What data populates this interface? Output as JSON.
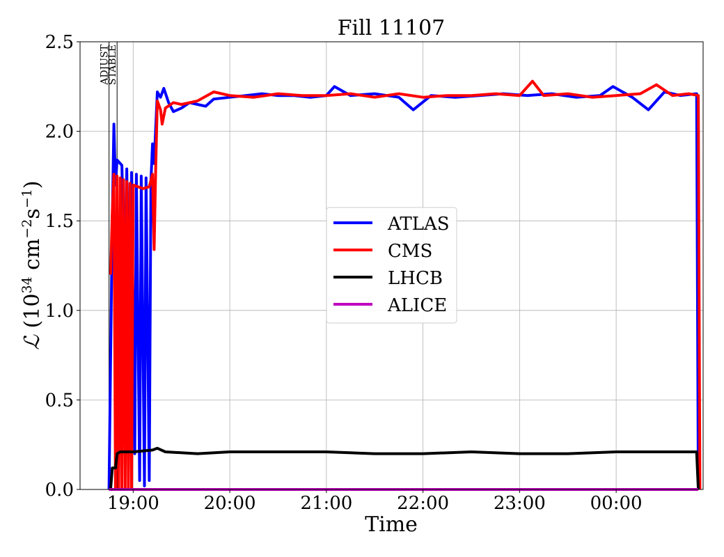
{
  "chart_data": {
    "type": "line",
    "title": "Fill 11107",
    "xlabel": "Time",
    "ylabel_parts": {
      "symbol": "ℒ",
      "open": " (10",
      "exp1": "34",
      "mid": " cm",
      "exp2": "−2",
      "s": "s",
      "exp3": "−1",
      "close": ")"
    },
    "ylim": [
      0,
      2.5
    ],
    "xlim": [
      "18:27",
      "00:54"
    ],
    "y_ticks": [
      "0.0",
      "0.5",
      "1.0",
      "1.5",
      "2.0",
      "2.5"
    ],
    "x_ticks": [
      "19:00",
      "20:00",
      "21:00",
      "22:00",
      "23:00",
      "00:00"
    ],
    "grid": true,
    "legend_position": "center-right",
    "beam_modes": [
      {
        "label": "ADJUST",
        "time": "18:45"
      },
      {
        "label": "STABLE",
        "time": "18:50"
      }
    ],
    "series": [
      {
        "name": "ATLAS",
        "color": "#0000ff",
        "points": [
          [
            "18:45",
            0.0
          ],
          [
            "18:47",
            1.5
          ],
          [
            "18:48",
            2.04
          ],
          [
            "18:49",
            1.7
          ],
          [
            "18:50",
            1.84
          ],
          [
            "18:53",
            1.81
          ],
          [
            "18:55",
            1.0
          ],
          [
            "18:56",
            1.79
          ],
          [
            "18:58",
            0.5
          ],
          [
            "18:59",
            1.77
          ],
          [
            "19:01",
            0.2
          ],
          [
            "19:02",
            1.76
          ],
          [
            "19:04",
            0.05
          ],
          [
            "19:05",
            1.75
          ],
          [
            "19:07",
            0.02
          ],
          [
            "19:08",
            1.74
          ],
          [
            "19:10",
            0.05
          ],
          [
            "19:11",
            1.72
          ],
          [
            "19:12",
            1.93
          ],
          [
            "19:13",
            1.82
          ],
          [
            "19:15",
            2.22
          ],
          [
            "19:17",
            2.19
          ],
          [
            "19:19",
            2.24
          ],
          [
            "19:22",
            2.16
          ],
          [
            "19:25",
            2.11
          ],
          [
            "19:30",
            2.13
          ],
          [
            "19:35",
            2.16
          ],
          [
            "19:40",
            2.15
          ],
          [
            "19:45",
            2.14
          ],
          [
            "19:50",
            2.18
          ],
          [
            "20:00",
            2.19
          ],
          [
            "20:10",
            2.2
          ],
          [
            "20:20",
            2.21
          ],
          [
            "20:30",
            2.2
          ],
          [
            "20:40",
            2.2
          ],
          [
            "20:50",
            2.19
          ],
          [
            "21:00",
            2.2
          ],
          [
            "21:05",
            2.25
          ],
          [
            "21:15",
            2.2
          ],
          [
            "21:30",
            2.21
          ],
          [
            "21:45",
            2.19
          ],
          [
            "21:54",
            2.12
          ],
          [
            "22:05",
            2.2
          ],
          [
            "22:20",
            2.19
          ],
          [
            "22:35",
            2.2
          ],
          [
            "22:50",
            2.21
          ],
          [
            "23:05",
            2.2
          ],
          [
            "23:20",
            2.21
          ],
          [
            "23:35",
            2.19
          ],
          [
            "23:50",
            2.2
          ],
          [
            "23:58",
            2.25
          ],
          [
            "00:10",
            2.19
          ],
          [
            "00:20",
            2.12
          ],
          [
            "00:30",
            2.22
          ],
          [
            "00:40",
            2.2
          ],
          [
            "00:50",
            2.21
          ],
          [
            "00:51",
            0.0
          ]
        ]
      },
      {
        "name": "CMS",
        "color": "#ff0000",
        "points": [
          [
            "18:46",
            1.2
          ],
          [
            "18:47",
            1.55
          ],
          [
            "18:48",
            1.76
          ],
          [
            "18:49",
            0.0
          ],
          [
            "18:50",
            1.75
          ],
          [
            "18:51",
            0.0
          ],
          [
            "18:52",
            1.74
          ],
          [
            "18:53",
            0.0
          ],
          [
            "18:54",
            1.73
          ],
          [
            "18:55",
            0.0
          ],
          [
            "18:56",
            1.72
          ],
          [
            "18:57",
            0.0
          ],
          [
            "18:58",
            1.71
          ],
          [
            "18:59",
            0.0
          ],
          [
            "19:00",
            1.7
          ],
          [
            "19:03",
            1.69
          ],
          [
            "19:06",
            1.68
          ],
          [
            "19:10",
            1.69
          ],
          [
            "19:12",
            1.76
          ],
          [
            "19:13",
            1.34
          ],
          [
            "19:14",
            1.8
          ],
          [
            "19:15",
            2.17
          ],
          [
            "19:17",
            2.12
          ],
          [
            "19:18",
            2.04
          ],
          [
            "19:20",
            2.13
          ],
          [
            "19:25",
            2.16
          ],
          [
            "19:30",
            2.15
          ],
          [
            "19:40",
            2.17
          ],
          [
            "19:50",
            2.22
          ],
          [
            "20:00",
            2.2
          ],
          [
            "20:15",
            2.19
          ],
          [
            "20:30",
            2.21
          ],
          [
            "20:45",
            2.2
          ],
          [
            "21:00",
            2.2
          ],
          [
            "21:15",
            2.21
          ],
          [
            "21:30",
            2.19
          ],
          [
            "21:45",
            2.21
          ],
          [
            "22:00",
            2.19
          ],
          [
            "22:15",
            2.2
          ],
          [
            "22:30",
            2.2
          ],
          [
            "22:45",
            2.21
          ],
          [
            "23:00",
            2.2
          ],
          [
            "23:08",
            2.28
          ],
          [
            "23:15",
            2.2
          ],
          [
            "23:30",
            2.21
          ],
          [
            "23:45",
            2.19
          ],
          [
            "00:00",
            2.2
          ],
          [
            "00:15",
            2.21
          ],
          [
            "00:25",
            2.26
          ],
          [
            "00:35",
            2.2
          ],
          [
            "00:45",
            2.21
          ],
          [
            "00:51",
            2.2
          ],
          [
            "00:52",
            0.0
          ]
        ]
      },
      {
        "name": "LHCB",
        "color": "#000000",
        "points": [
          [
            "18:45",
            0.0
          ],
          [
            "18:46",
            0.0
          ],
          [
            "18:47",
            0.12
          ],
          [
            "18:49",
            0.12
          ],
          [
            "18:50",
            0.2
          ],
          [
            "18:52",
            0.21
          ],
          [
            "19:00",
            0.21
          ],
          [
            "19:12",
            0.22
          ],
          [
            "19:15",
            0.23
          ],
          [
            "19:20",
            0.21
          ],
          [
            "19:40",
            0.2
          ],
          [
            "20:00",
            0.21
          ],
          [
            "20:30",
            0.21
          ],
          [
            "21:00",
            0.21
          ],
          [
            "21:30",
            0.2
          ],
          [
            "22:00",
            0.2
          ],
          [
            "22:30",
            0.21
          ],
          [
            "23:00",
            0.2
          ],
          [
            "23:30",
            0.2
          ],
          [
            "00:00",
            0.21
          ],
          [
            "00:40",
            0.21
          ],
          [
            "00:50",
            0.21
          ],
          [
            "00:51",
            0.0
          ]
        ]
      },
      {
        "name": "ALICE",
        "color": "#bf00bf",
        "points": [
          [
            "18:45",
            0.0
          ],
          [
            "00:51",
            0.0
          ]
        ]
      }
    ]
  }
}
